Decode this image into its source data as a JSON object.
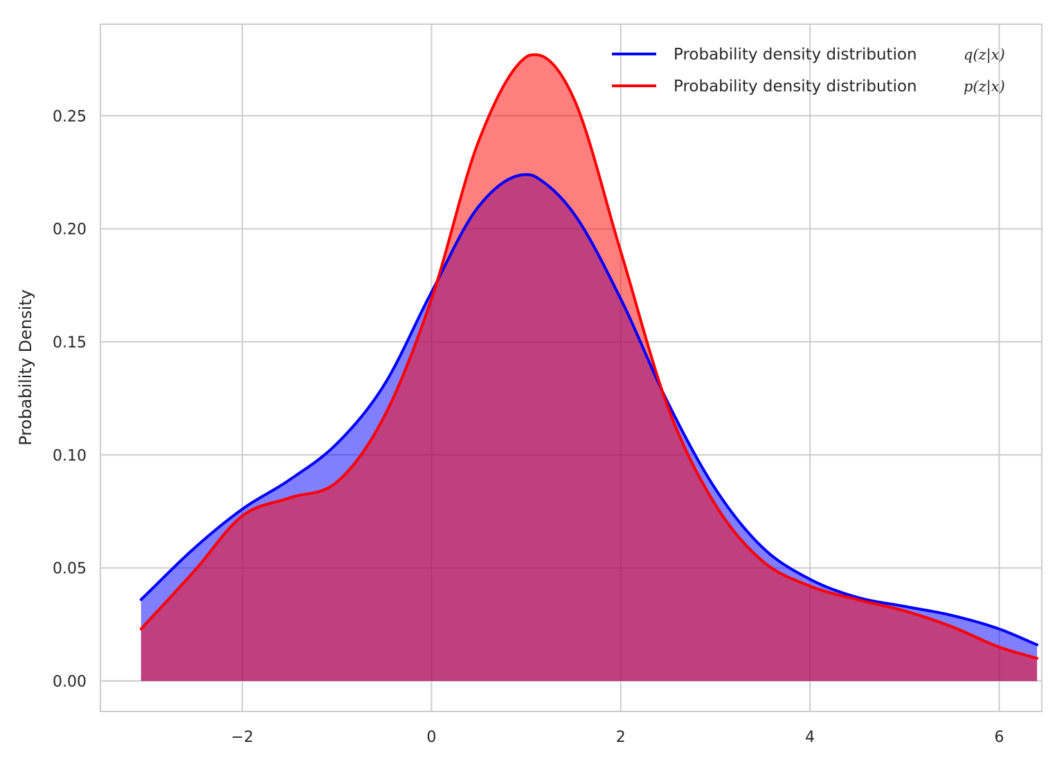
{
  "chart_data": {
    "type": "area",
    "title": "",
    "xlabel": "",
    "ylabel": "Probability Density",
    "xlim": [
      -3.5,
      6.45
    ],
    "ylim": [
      -0.0135,
      0.2905
    ],
    "x_ticks": [
      -2,
      0,
      2,
      4,
      6
    ],
    "x_tick_labels": [
      "−2",
      "0",
      "2",
      "4",
      "6"
    ],
    "y_ticks": [
      0.0,
      0.05,
      0.1,
      0.15,
      0.2,
      0.25
    ],
    "y_tick_labels": [
      "0.00",
      "0.05",
      "0.10",
      "0.15",
      "0.20",
      "0.25"
    ],
    "grid": true,
    "legend_position": "top-right",
    "x": [
      -3.07,
      -2.5,
      -2.0,
      -1.5,
      -1.0,
      -0.5,
      0.0,
      0.5,
      1.0,
      1.1,
      1.5,
      2.0,
      2.5,
      3.0,
      3.5,
      4.0,
      4.5,
      5.0,
      5.5,
      6.0,
      6.4
    ],
    "series": [
      {
        "name": "Probability density distribution",
        "math": "q(z|x)",
        "color": "#0000ff",
        "fill": "#8080ff",
        "values": [
          0.036,
          0.059,
          0.076,
          0.089,
          0.105,
          0.131,
          0.172,
          0.21,
          0.224,
          0.223,
          0.207,
          0.169,
          0.123,
          0.085,
          0.059,
          0.045,
          0.037,
          0.033,
          0.029,
          0.023,
          0.016
        ]
      },
      {
        "name": "Probability density distribution",
        "math": "p(z|x)",
        "color": "#ff0000",
        "fill": "#ff8080",
        "values": [
          0.023,
          0.049,
          0.073,
          0.081,
          0.088,
          0.117,
          0.169,
          0.239,
          0.276,
          0.277,
          0.258,
          0.19,
          0.121,
          0.078,
          0.053,
          0.042,
          0.036,
          0.031,
          0.024,
          0.015,
          0.01
        ]
      }
    ]
  },
  "colors": {
    "background": "#ffffff",
    "grid": "#cccccc",
    "overlap": "#be3f7d",
    "text": "#262626"
  }
}
